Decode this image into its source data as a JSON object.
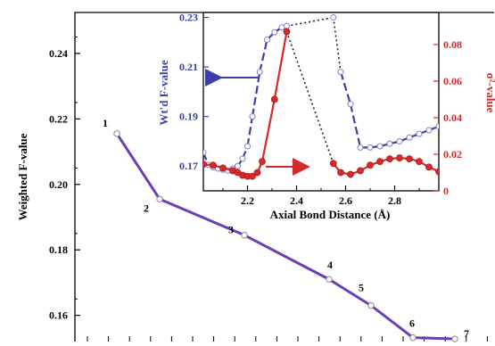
{
  "chart_data": [
    {
      "type": "line",
      "ylabel": "Weighted F-value",
      "ylim": [
        0.152,
        0.2525
      ],
      "yticks": [
        "0.16",
        "0.18",
        "0.20",
        "0.22",
        "0.24"
      ],
      "ytick_values": [
        0.16,
        0.18,
        0.2,
        0.22,
        0.24
      ],
      "series": [
        {
          "points": [
            {
              "label": "1",
              "value": 0.2155
            },
            {
              "label": "2",
              "value": 0.1955
            },
            {
              "label": "3",
              "value": 0.1845
            },
            {
              "label": "4",
              "value": 0.171
            },
            {
              "label": "5",
              "value": 0.163
            },
            {
              "label": "6",
              "value": 0.1532
            },
            {
              "label": "7",
              "value": 0.1528
            }
          ]
        }
      ],
      "colors": {
        "line": "#6a3fb5",
        "marker_fill": "#ffffff"
      }
    },
    {
      "type": "line",
      "xlabel": "Axial Bond Distance (Å)",
      "ylabel_left": "Wt'd F-value",
      "ylabel_right": "σ²-value",
      "xlim": [
        2.02,
        2.98
      ],
      "ylim_left": [
        0.16,
        0.232
      ],
      "ylim_right": [
        0.0,
        0.0975
      ],
      "xticks": [
        "2.2",
        "2.4",
        "2.6",
        "2.8"
      ],
      "xtick_values": [
        2.2,
        2.4,
        2.6,
        2.8
      ],
      "yticks_left": [
        "0.17",
        "0.19",
        "0.21",
        "0.23"
      ],
      "ytick_left_values": [
        0.17,
        0.19,
        0.21,
        0.23
      ],
      "yticks_right": [
        "0",
        "0.02",
        "0.04",
        "0.06",
        "0.08"
      ],
      "ytick_right_values": [
        0,
        0.02,
        0.04,
        0.06,
        0.08
      ],
      "series_f": {
        "axis": "left",
        "x": [
          2.02,
          2.04,
          2.06,
          2.08,
          2.1,
          2.12,
          2.14,
          2.16,
          2.18,
          2.2,
          2.22,
          2.25,
          2.28,
          2.31,
          2.34,
          2.36,
          2.55,
          2.58,
          2.62,
          2.66,
          2.7,
          2.74,
          2.78,
          2.82,
          2.86,
          2.9,
          2.94,
          2.98
        ],
        "y": [
          0.1755,
          0.1705,
          0.1695,
          0.169,
          0.1685,
          0.1682,
          0.169,
          0.17,
          0.173,
          0.178,
          0.19,
          0.208,
          0.221,
          0.224,
          0.226,
          0.2265,
          0.23,
          0.208,
          0.195,
          0.1775,
          0.1775,
          0.178,
          0.179,
          0.18,
          0.1815,
          0.183,
          0.1845,
          0.186
        ],
        "dotted_segments": [
          [
            15,
            16
          ],
          [
            16,
            17
          ]
        ]
      },
      "series_sigma": {
        "axis": "right",
        "x": [
          2.02,
          2.06,
          2.1,
          2.14,
          2.16,
          2.18,
          2.2,
          2.22,
          2.24,
          2.26,
          2.31,
          2.36,
          2.55,
          2.58,
          2.62,
          2.66,
          2.7,
          2.74,
          2.78,
          2.82,
          2.86,
          2.9,
          2.94,
          2.98
        ],
        "y": [
          0.0145,
          0.014,
          0.0125,
          0.011,
          0.01,
          0.0085,
          0.008,
          0.008,
          0.01,
          0.016,
          0.05,
          0.087,
          0.015,
          0.01,
          0.009,
          0.011,
          0.014,
          0.016,
          0.0175,
          0.018,
          0.0175,
          0.016,
          0.013,
          0.0105
        ],
        "dotted_segments": [
          [
            11,
            12
          ]
        ]
      },
      "colors": {
        "f": "#3b3fa8",
        "sigma": "#d42a2a",
        "dotted": "#222222"
      }
    }
  ]
}
